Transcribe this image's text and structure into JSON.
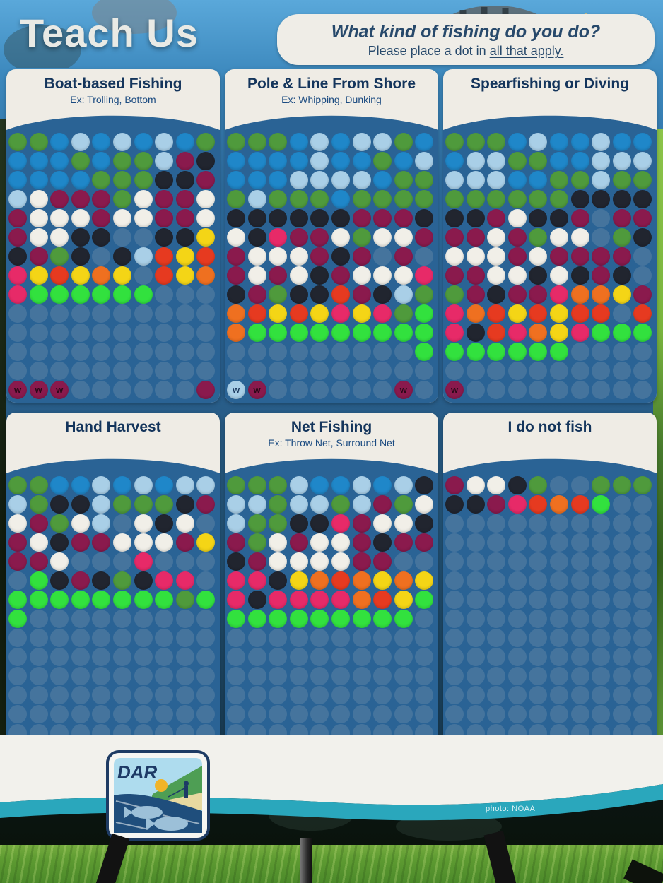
{
  "title": "Teach Us",
  "question": {
    "line1": "What kind of fishing do you do?",
    "line2_prefix": "Please place a dot in ",
    "line2_underlined": "all that apply."
  },
  "photo_credit": "photo: NOAA",
  "logo_text": "DAR",
  "board": {
    "cols": 10,
    "rows": 14,
    "board_color": "#2a6395",
    "empty_slot_color": "#45749d"
  },
  "mark_char": "w",
  "dot_colors": {
    "B": {
      "name": "blue",
      "hex": "#1f87c9"
    },
    "L": {
      "name": "light-blue",
      "hex": "#a9cfe7"
    },
    "G": {
      "name": "green",
      "hex": "#4f9a3c"
    },
    "N": {
      "name": "lime-green",
      "hex": "#32e13e"
    },
    "W": {
      "name": "white",
      "hex": "#f1efe8"
    },
    "M": {
      "name": "maroon",
      "hex": "#8a1a4d"
    },
    "K": {
      "name": "black",
      "hex": "#21252f"
    },
    "Y": {
      "name": "yellow",
      "hex": "#f4d516"
    },
    "O": {
      "name": "orange",
      "hex": "#ef7020"
    },
    "R": {
      "name": "red",
      "hex": "#e63a20"
    },
    "P": {
      "name": "pink",
      "hex": "#e72a68"
    }
  },
  "panels": [
    {
      "title": "Boat-based Fishing",
      "subtitle": "Ex: Trolling, Bottom",
      "rows": [
        "GGBLBLBLBG",
        "BBBGBGGLMK",
        "BBBBGGGKKM",
        "LWMMMGWMMW",
        "MWWWMWWMMW",
        "MWWKK..KKY",
        "KMGK.KLRYR",
        "PYRYOY.RYO",
        "PNNNNNN...",
        "..........",
        "..........",
        "..........",
        "..........",
        "mmm......M"
      ]
    },
    {
      "title": "Pole & Line From Shore",
      "subtitle": "Ex: Whipping, Dunking",
      "rows": [
        "GGGBLBLLGB",
        "BBBBLBBGBL",
        "BBBLLLLBGG",
        "GLGGGBGGGG",
        "KKKKKKMMMK",
        "WKPMMWGWWM",
        "MWWWMKM.M.",
        "MWMWKMWWWP",
        "KMGKKRMKLG",
        "ORYRYPYPGN",
        "ONNNNNNNNN",
        ".........N",
        "..........",
        "lm......m."
      ]
    },
    {
      "title": "Spearfishing or Diving",
      "subtitle": "",
      "rows": [
        "GGGBLBBLBB",
        "BLLGGBBLLL",
        "LLLBBGGLGG",
        "GGGGGGKKKK",
        "KKMWKKM.MM",
        "MMWMGWW.GK",
        "WWWMWMMMM.",
        "MMWWKWKMK.",
        "GMKMMPOOYM",
        "PORYRYRR.R",
        "PKRPOYPNNN",
        "NNNNNN....",
        "..........",
        "m........."
      ]
    },
    {
      "title": "Hand Harvest",
      "subtitle": "",
      "rows": [
        "GGBBLBLBLL",
        "LGKKLGGGKM",
        "WMGWL.WKW.",
        "MWKMMWWWMY",
        "MMW...P...",
        ".NKMKGKPP.",
        "NNNNNNNNGN",
        "N.........",
        "..........",
        "..........",
        "..........",
        "..........",
        "..........",
        ".........."
      ]
    },
    {
      "title": "Net Fishing",
      "subtitle": "Ex: Throw Net, Surround Net",
      "rows": [
        "GGGLBBLBLK",
        "LLGLLGLMGW",
        "LGGKKPMWWK",
        "MGWMWWMKMM",
        "KMWWWWMM..",
        "PPKYOROYOY",
        "PKPPPPORYN",
        "NNNNNNNNN.",
        "..........",
        "..........",
        "..........",
        "..........",
        "..........",
        ".........."
      ]
    },
    {
      "title": "I do not fish",
      "subtitle": "",
      "rows": [
        "MWWKG..GGG",
        "KKMPRORN..",
        "..........",
        "..........",
        "..........",
        "..........",
        "..........",
        "..........",
        "..........",
        "..........",
        "..........",
        "..........",
        "..........",
        ".........."
      ]
    }
  ],
  "chart_data": {
    "type": "table",
    "title": "What kind of fishing do you do? (dot-sticker tally)",
    "categories": [
      "Boat-based Fishing",
      "Pole & Line From Shore",
      "Spearfishing or Diving",
      "Hand Harvest",
      "Net Fishing",
      "I do not fish"
    ],
    "values": [
      87,
      112,
      112,
      61,
      77,
      16
    ],
    "note": "approximate number of dot stickers placed on each panel"
  }
}
